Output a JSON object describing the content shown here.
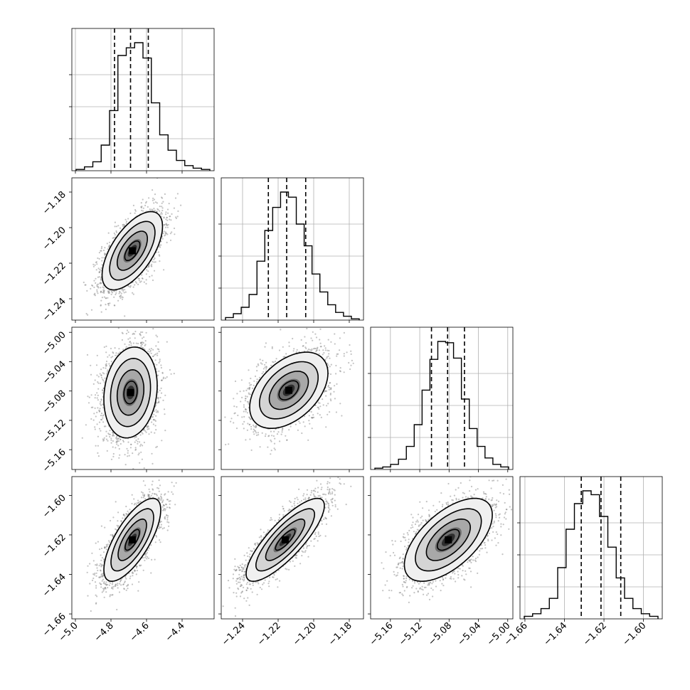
{
  "chart_data": {
    "type": "corner",
    "grid": true,
    "parameters": [
      {
        "index": 0,
        "range": [
          -5.02,
          -4.22
        ],
        "ticks": [
          -5.0,
          -4.8,
          -4.6,
          -4.4
        ],
        "tick_labels": [
          "−5.0",
          "−4.8",
          "−4.6",
          "−4.4"
        ],
        "quantiles": [
          -4.78,
          -4.69,
          -4.59
        ],
        "histogram": [
          1,
          3,
          7,
          20,
          47,
          90,
          96,
          100,
          88,
          53,
          28,
          16,
          8,
          4,
          2,
          1
        ]
      },
      {
        "index": 1,
        "range": [
          -1.252,
          -1.172
        ],
        "ticks": [
          -1.24,
          -1.22,
          -1.2,
          -1.18
        ],
        "tick_labels": [
          "−1.24",
          "−1.22",
          "−1.20",
          "−1.18"
        ],
        "quantiles": [
          -1.2255,
          -1.2152,
          -1.2045
        ],
        "histogram": [
          2,
          5,
          10,
          20,
          46,
          70,
          88,
          100,
          96,
          75,
          58,
          36,
          22,
          12,
          6,
          3,
          1
        ]
      },
      {
        "index": 2,
        "range": [
          -5.187,
          -4.993
        ],
        "ticks": [
          -5.16,
          -5.12,
          -5.08,
          -5.04,
          -5.0
        ],
        "tick_labels": [
          "−5.16",
          "−5.12",
          "−5.08",
          "−5.04",
          "−5.00"
        ],
        "quantiles": [
          -5.104,
          -5.082,
          -5.059
        ],
        "histogram": [
          1,
          2,
          4,
          8,
          18,
          35,
          62,
          86,
          100,
          99,
          87,
          55,
          32,
          18,
          9,
          4,
          2
        ]
      },
      {
        "index": 3,
        "range": [
          -1.6625,
          -1.5905
        ],
        "ticks": [
          -1.66,
          -1.64,
          -1.62,
          -1.6
        ],
        "tick_labels": [
          "−1.66",
          "−1.64",
          "−1.62",
          "−1.60"
        ],
        "quantiles": [
          -1.6315,
          -1.6215,
          -1.6115
        ],
        "histogram": [
          2,
          4,
          8,
          16,
          40,
          70,
          90,
          100,
          97,
          80,
          56,
          32,
          16,
          8,
          4,
          2
        ]
      }
    ],
    "pairs": [
      {
        "row": 1,
        "col": 0,
        "mean": [
          -4.68,
          -1.213
        ],
        "sd": [
          0.085,
          0.011
        ],
        "rho": 0.62
      },
      {
        "row": 2,
        "col": 0,
        "mean": [
          -4.69,
          -5.082
        ],
        "sd": [
          0.075,
          0.031
        ],
        "rho": 0.15
      },
      {
        "row": 2,
        "col": 1,
        "mean": [
          -1.214,
          -5.079
        ],
        "sd": [
          0.011,
          0.026
        ],
        "rho": 0.45
      },
      {
        "row": 3,
        "col": 0,
        "mean": [
          -4.68,
          -1.6225
        ],
        "sd": [
          0.08,
          0.0105
        ],
        "rho": 0.72
      },
      {
        "row": 3,
        "col": 1,
        "mean": [
          -1.216,
          -1.6225
        ],
        "sd": [
          0.011,
          0.0105
        ],
        "rho": 0.82
      },
      {
        "row": 3,
        "col": 2,
        "mean": [
          -5.081,
          -1.6225
        ],
        "sd": [
          0.03,
          0.0105
        ],
        "rho": 0.6
      }
    ],
    "contour_levels_sigma": [
      0.5,
      1.0,
      1.5,
      2.0
    ],
    "colors": {
      "line": "#000000",
      "points": "#7a7a7a",
      "grid": "#b0b0b0",
      "density_max": "#000000"
    }
  }
}
